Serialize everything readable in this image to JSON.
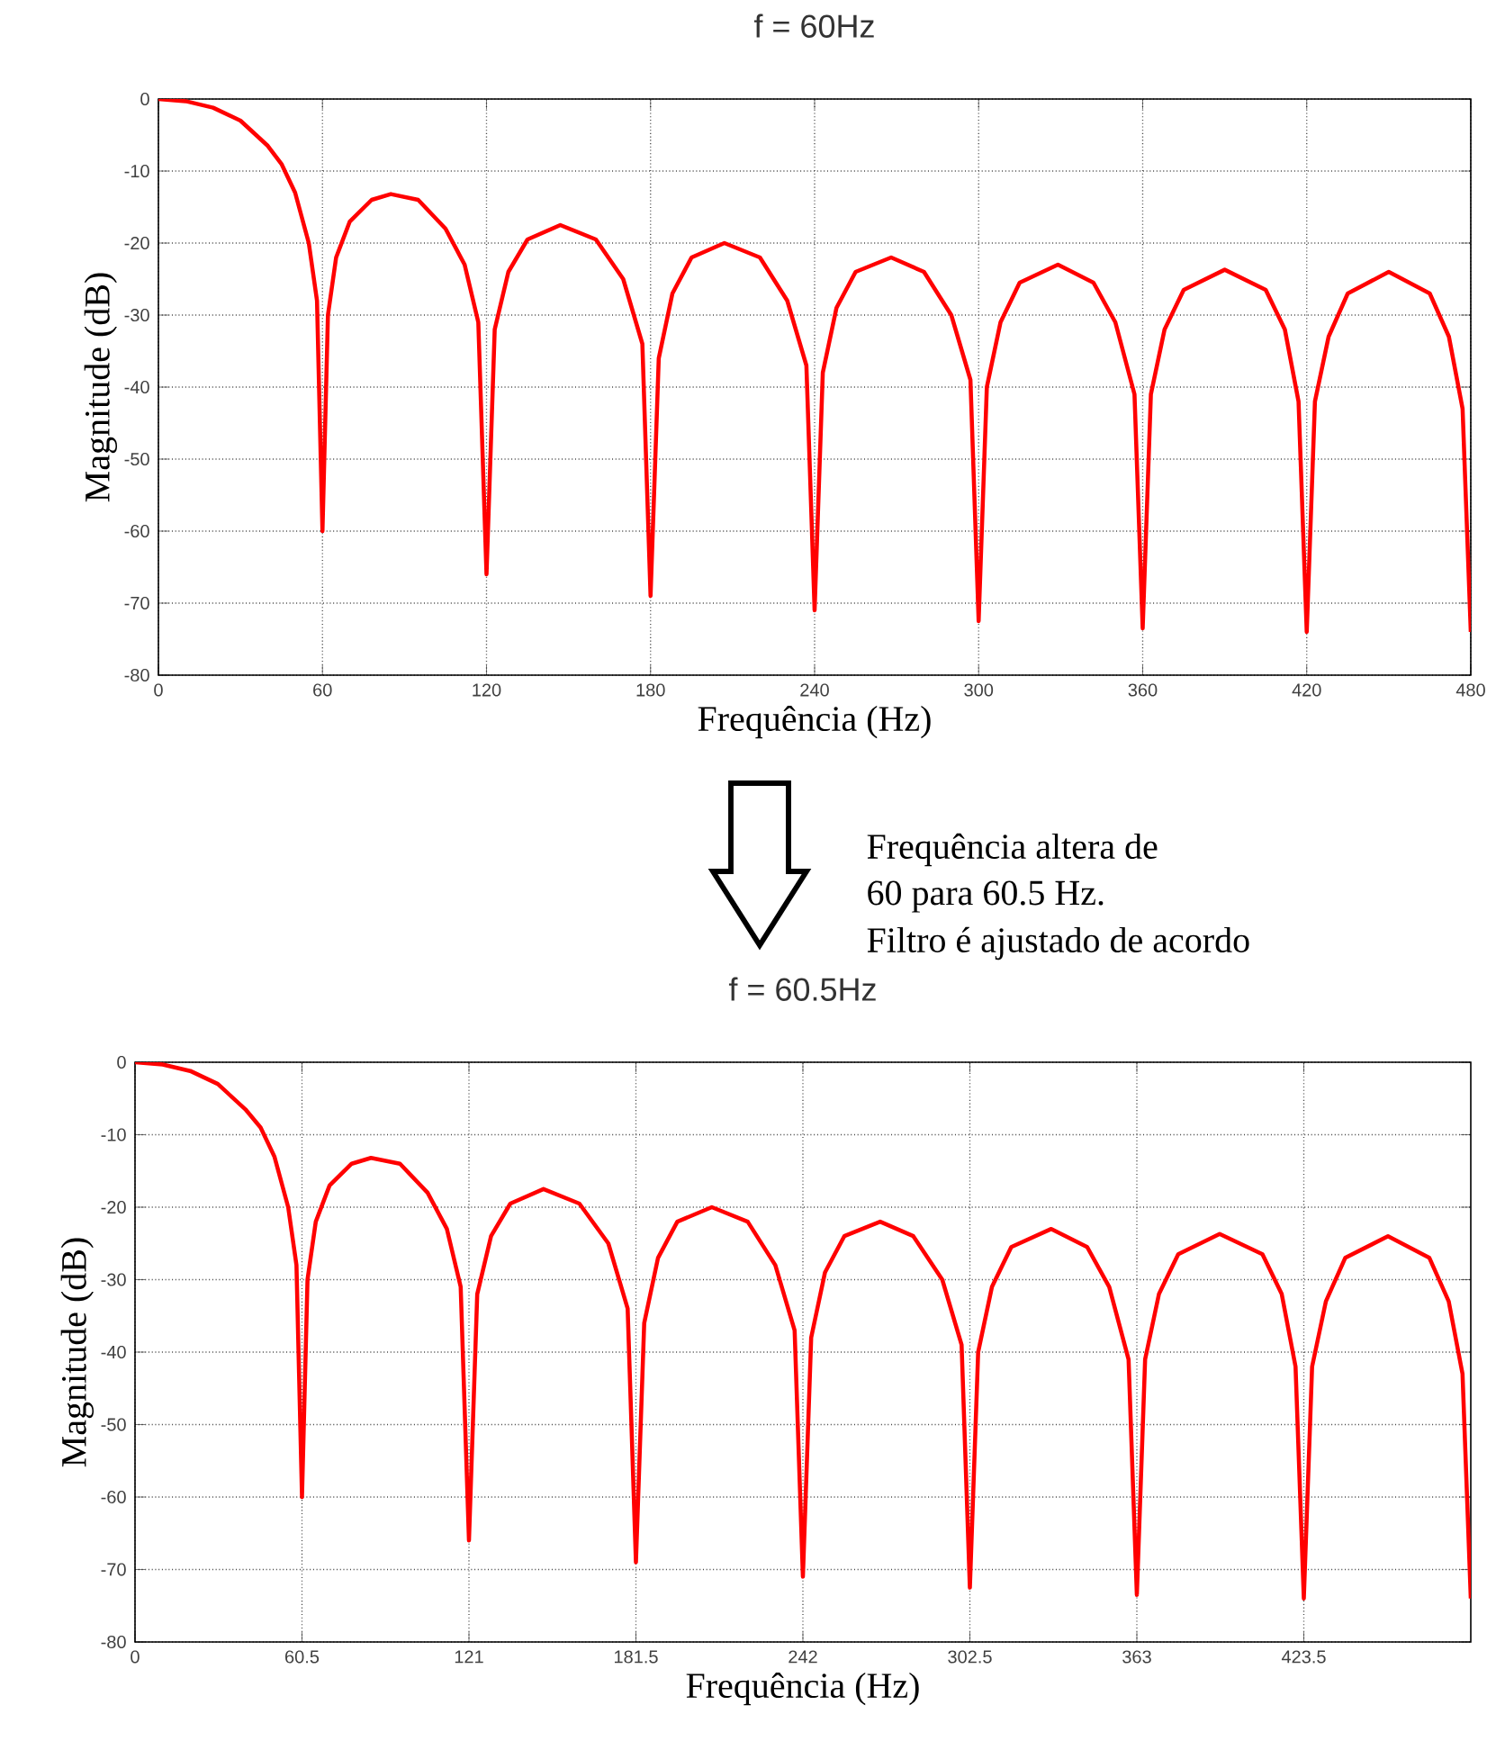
{
  "chart_data": [
    {
      "type": "line",
      "title": "f = 60Hz",
      "xlabel": "Frequência (Hz)",
      "ylabel": "Magnitude (dB)",
      "annotations": [
        "Frequência altera de",
        "60 para 60.5 Hz.",
        "Filtro é ajustado de acordo"
      ],
      "xlim": [
        0,
        480
      ],
      "ylim": [
        -80,
        0
      ],
      "xticks": [
        0,
        60,
        120,
        180,
        240,
        300,
        360,
        420,
        480
      ],
      "yticks": [
        -80,
        -70,
        -60,
        -50,
        -40,
        -30,
        -20,
        -10,
        0
      ],
      "grid": true,
      "marker": "none",
      "line_style": "solid",
      "series": [
        {
          "color": "#ff0000",
          "x": [
            0,
            10,
            20,
            30,
            40,
            45,
            50,
            55,
            58,
            60,
            62,
            65,
            70,
            78,
            85,
            95,
            105,
            112,
            117,
            120,
            123,
            128,
            135,
            147,
            160,
            170,
            177,
            180,
            183,
            188,
            195,
            207,
            220,
            230,
            237,
            240,
            243,
            248,
            255,
            268,
            280,
            290,
            297,
            300,
            303,
            308,
            315,
            329,
            342,
            350,
            357,
            360,
            363,
            368,
            375,
            390,
            405,
            412,
            417,
            420,
            423,
            428,
            435,
            450,
            465,
            472,
            477,
            480
          ],
          "values": [
            0,
            -0.3,
            -1.2,
            -3,
            -6.5,
            -9,
            -13,
            -20,
            -28,
            -60,
            -30,
            -22,
            -17,
            -14,
            -13.2,
            -14,
            -18,
            -23,
            -31,
            -66,
            -32,
            -24,
            -19.5,
            -17.5,
            -19.5,
            -25,
            -34,
            -69,
            -36,
            -27,
            -22,
            -20,
            -22,
            -28,
            -37,
            -71,
            -38,
            -29,
            -24,
            -22,
            -24,
            -30,
            -39,
            -72.5,
            -40,
            -31,
            -25.5,
            -23,
            -25.5,
            -31,
            -41,
            -73.5,
            -41,
            -32,
            -26.5,
            -23.7,
            -26.5,
            -32,
            -42,
            -74,
            -42,
            -33,
            -27,
            -24,
            -27,
            -33,
            -43,
            -74
          ]
        }
      ]
    },
    {
      "type": "line",
      "title": "f = 60.5Hz",
      "xlabel": "Frequência (Hz)",
      "ylabel": "Magnitude (dB)",
      "xlim": [
        0,
        484
      ],
      "ylim": [
        -80,
        0
      ],
      "xticks": [
        0,
        60.5,
        121,
        181.5,
        242,
        302.5,
        363,
        423.5
      ],
      "yticks": [
        -80,
        -70,
        -60,
        -50,
        -40,
        -30,
        -20,
        -10,
        0
      ],
      "grid": true,
      "marker": "none",
      "line_style": "solid",
      "series": [
        {
          "color": "#ff0000",
          "x": [
            0,
            10,
            20,
            30,
            40,
            45.5,
            50.5,
            55.5,
            58.5,
            60.5,
            62.5,
            65.5,
            70.5,
            78.5,
            85.5,
            96,
            106,
            113,
            118,
            121,
            124,
            129,
            136,
            148,
            161,
            171.5,
            178.5,
            181.5,
            184.5,
            189.5,
            196.5,
            209,
            222,
            232,
            239,
            242,
            245,
            250,
            257,
            270,
            282,
            292.5,
            299.5,
            302.5,
            305.5,
            310.5,
            317.5,
            332,
            345,
            353,
            360,
            363,
            366,
            371,
            378,
            393,
            408.5,
            415.5,
            420.5,
            423.5,
            426.5,
            431.5,
            438.5,
            454,
            469,
            476,
            481,
            484
          ],
          "values": [
            0,
            -0.3,
            -1.2,
            -3,
            -6.5,
            -9,
            -13,
            -20,
            -28,
            -60,
            -30,
            -22,
            -17,
            -14,
            -13.2,
            -14,
            -18,
            -23,
            -31,
            -66,
            -32,
            -24,
            -19.5,
            -17.5,
            -19.5,
            -25,
            -34,
            -69,
            -36,
            -27,
            -22,
            -20,
            -22,
            -28,
            -37,
            -71,
            -38,
            -29,
            -24,
            -22,
            -24,
            -30,
            -39,
            -72.5,
            -40,
            -31,
            -25.5,
            -23,
            -25.5,
            -31,
            -41,
            -73.5,
            -41,
            -32,
            -26.5,
            -23.7,
            -26.5,
            -32,
            -42,
            -74,
            -42,
            -33,
            -27,
            -24,
            -27,
            -33,
            -43,
            -74
          ]
        }
      ]
    }
  ]
}
